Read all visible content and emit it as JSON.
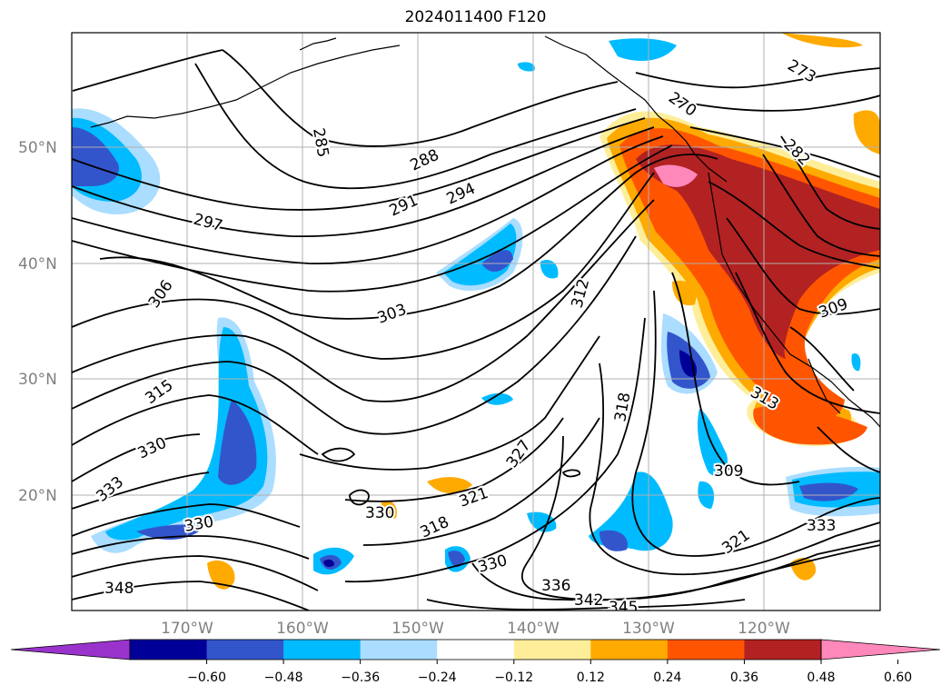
{
  "title": "2024011400 F120",
  "map": {
    "lat_labels": [
      "50°N",
      "40°N",
      "30°N",
      "20°N"
    ],
    "lon_labels": [
      "170°W",
      "160°W",
      "150°W",
      "140°W",
      "130°W",
      "120°W"
    ],
    "contour_labels": [
      "285",
      "288",
      "291",
      "294",
      "297",
      "303",
      "306",
      "312",
      "315",
      "318",
      "321",
      "327",
      "330",
      "333",
      "336",
      "342",
      "345",
      "348",
      "309",
      "273",
      "270",
      "282",
      "313"
    ]
  },
  "colorbar": {
    "ticks": [
      "−0.60",
      "−0.48",
      "−0.36",
      "−0.24",
      "−0.12",
      "0.12",
      "0.24",
      "0.36",
      "0.48",
      "0.60"
    ],
    "colors": [
      "#9933cc",
      "#000099",
      "#3355cc",
      "#00bbff",
      "#aaddff",
      "#ffffff",
      "#ffee99",
      "#ffaa00",
      "#ff5500",
      "#b22222",
      "#ff88bb"
    ]
  }
}
